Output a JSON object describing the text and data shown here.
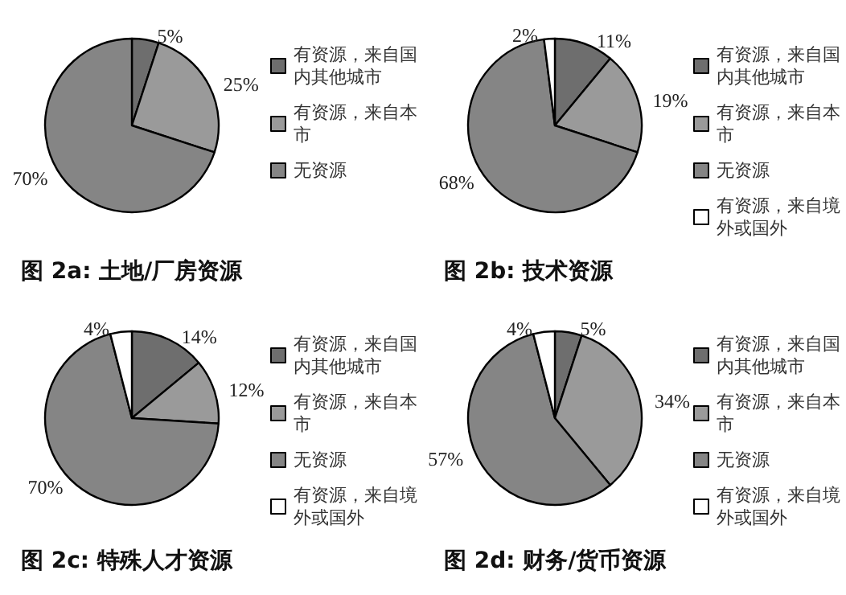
{
  "chart_data": [
    {
      "type": "pie",
      "title": "图 2a: 土地/厂房资源",
      "categories": [
        "有资源，来自国内其他城市",
        "有资源，来自本市",
        "无资源"
      ],
      "values": [
        5,
        25,
        70
      ],
      "colors": [
        "#6e6e6e",
        "#9a9a9a",
        "#858585"
      ],
      "value_labels": [
        "5%",
        "25%",
        "70%"
      ],
      "legend": "right"
    },
    {
      "type": "pie",
      "title": "图 2b: 技术资源",
      "categories": [
        "有资源，来自国内其他城市",
        "有资源，来自本市",
        "无资源",
        "有资源，来自境外或国外"
      ],
      "values": [
        11,
        19,
        68,
        2
      ],
      "colors": [
        "#6e6e6e",
        "#9a9a9a",
        "#858585",
        "#ffffff"
      ],
      "value_labels": [
        "11%",
        "19%",
        "68%",
        "2%"
      ],
      "legend": "right"
    },
    {
      "type": "pie",
      "title": "图 2c: 特殊人才资源",
      "categories": [
        "有资源，来自国内其他城市",
        "有资源，来自本市",
        "无资源",
        "有资源，来自境外或国外"
      ],
      "values": [
        14,
        12,
        70,
        4
      ],
      "colors": [
        "#6e6e6e",
        "#9a9a9a",
        "#858585",
        "#ffffff"
      ],
      "value_labels": [
        "14%",
        "12%",
        "70%",
        "4%"
      ],
      "legend": "right"
    },
    {
      "type": "pie",
      "title": "图 2d: 财务/货币资源",
      "categories": [
        "有资源，来自国内其他城市",
        "有资源，来自本市",
        "无资源",
        "有资源，来自境外或国外"
      ],
      "values": [
        5,
        34,
        57,
        4
      ],
      "colors": [
        "#6e6e6e",
        "#9a9a9a",
        "#858585",
        "#ffffff"
      ],
      "value_labels": [
        "5%",
        "34%",
        "57%",
        "4%"
      ],
      "legend": "right"
    }
  ]
}
